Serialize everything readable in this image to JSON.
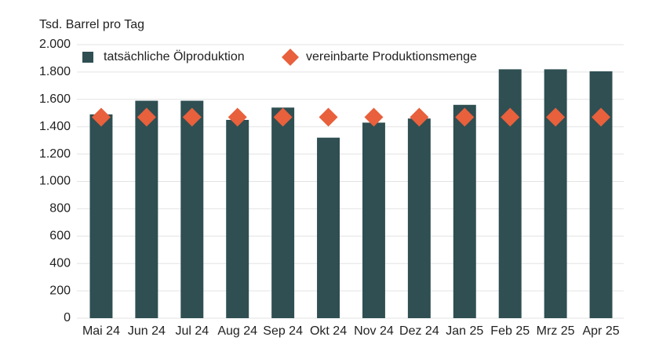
{
  "chart_data": {
    "type": "bar",
    "ylabel": "Tsd. Barrel pro Tag",
    "categories": [
      "Mai 24",
      "Jun 24",
      "Jul 24",
      "Aug 24",
      "Sep 24",
      "Okt 24",
      "Nov 24",
      "Dez 24",
      "Jan 25",
      "Feb 25",
      "Mrz 25",
      "Apr 25"
    ],
    "series": [
      {
        "name": "tatsächliche Ölproduktion",
        "color": "#2f4f52",
        "mark": "bar",
        "values": [
          1490,
          1590,
          1590,
          1450,
          1540,
          1320,
          1430,
          1460,
          1560,
          1820,
          1820,
          1805
        ]
      },
      {
        "name": "vereinbarte Produktionsmenge",
        "color": "#e8603c",
        "mark": "diamond",
        "values": [
          1470,
          1470,
          1470,
          1470,
          1470,
          1470,
          1470,
          1470,
          1470,
          1470,
          1470,
          1470
        ]
      }
    ],
    "ylim": [
      0,
      2000
    ],
    "yticks": [
      0,
      200,
      400,
      600,
      800,
      {
        "value": 1000,
        "label": "1.000"
      },
      {
        "value": 1200,
        "label": "1.200"
      },
      {
        "value": 1400,
        "label": "1.400"
      },
      {
        "value": 1600,
        "label": "1.600"
      },
      {
        "value": 1800,
        "label": "1.800"
      },
      {
        "value": 2000,
        "label": "2.000"
      }
    ],
    "grid": true
  }
}
